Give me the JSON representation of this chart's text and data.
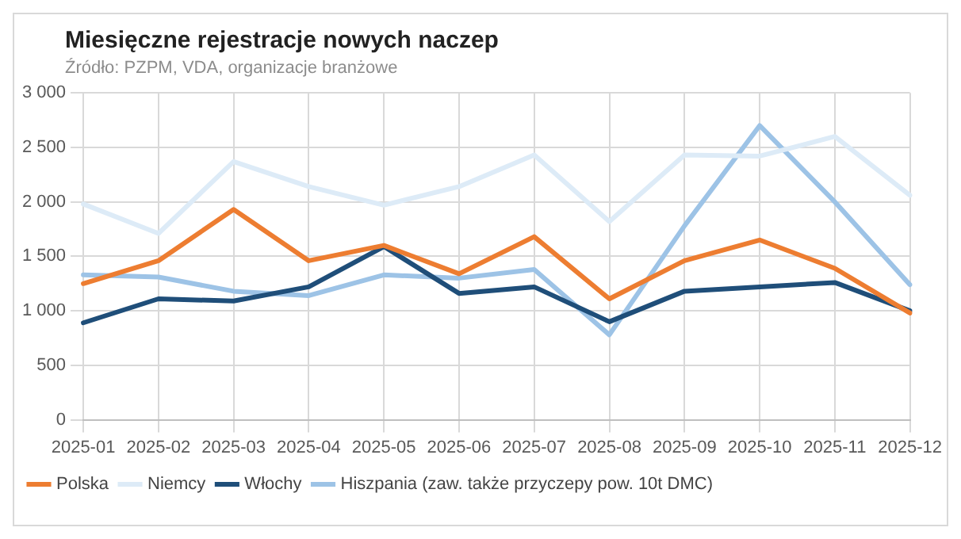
{
  "chart_data": {
    "type": "line",
    "title": "Miesięczne rejestracje nowych naczep",
    "subtitle": "Źródło: PZPM, VDA, organizacje branżowe",
    "categories": [
      "2025-01",
      "2025-02",
      "2025-03",
      "2025-04",
      "2025-05",
      "2025-06",
      "2025-07",
      "2025-08",
      "2025-09",
      "2025-10",
      "2025-11",
      "2025-12"
    ],
    "series": [
      {
        "name": "Polska",
        "color": "#ed7d31",
        "values": [
          1250,
          1460,
          1930,
          1460,
          1600,
          1340,
          1680,
          1110,
          1460,
          1650,
          1390,
          980
        ]
      },
      {
        "name": "Niemcy",
        "color": "#ddebf7",
        "values": [
          1980,
          1710,
          2370,
          2140,
          1970,
          2140,
          2430,
          1820,
          2430,
          2420,
          2600,
          2060
        ]
      },
      {
        "name": "Włochy",
        "color": "#1f4e79",
        "values": [
          890,
          1110,
          1090,
          1220,
          1590,
          1160,
          1220,
          900,
          1180,
          1220,
          1260,
          1000
        ]
      },
      {
        "name": "Hiszpania (zaw. także przyczepy pow. 10t DMC)",
        "color": "#9dc3e6",
        "values": [
          1330,
          1310,
          1180,
          1140,
          1330,
          1300,
          1380,
          780,
          1780,
          2700,
          2000,
          1240
        ]
      }
    ],
    "ylim": [
      0,
      3000
    ],
    "yticks": [
      {
        "value": 0,
        "label": "0"
      },
      {
        "value": 500,
        "label": "500"
      },
      {
        "value": 1000,
        "label": "1 000"
      },
      {
        "value": 1500,
        "label": "1 500"
      },
      {
        "value": 2000,
        "label": "2 000"
      },
      {
        "value": 2500,
        "label": "2 500"
      },
      {
        "value": 3000,
        "label": "3 000"
      }
    ],
    "grid": true,
    "legend": "bottom",
    "marker": "none",
    "line_style": "solid"
  }
}
